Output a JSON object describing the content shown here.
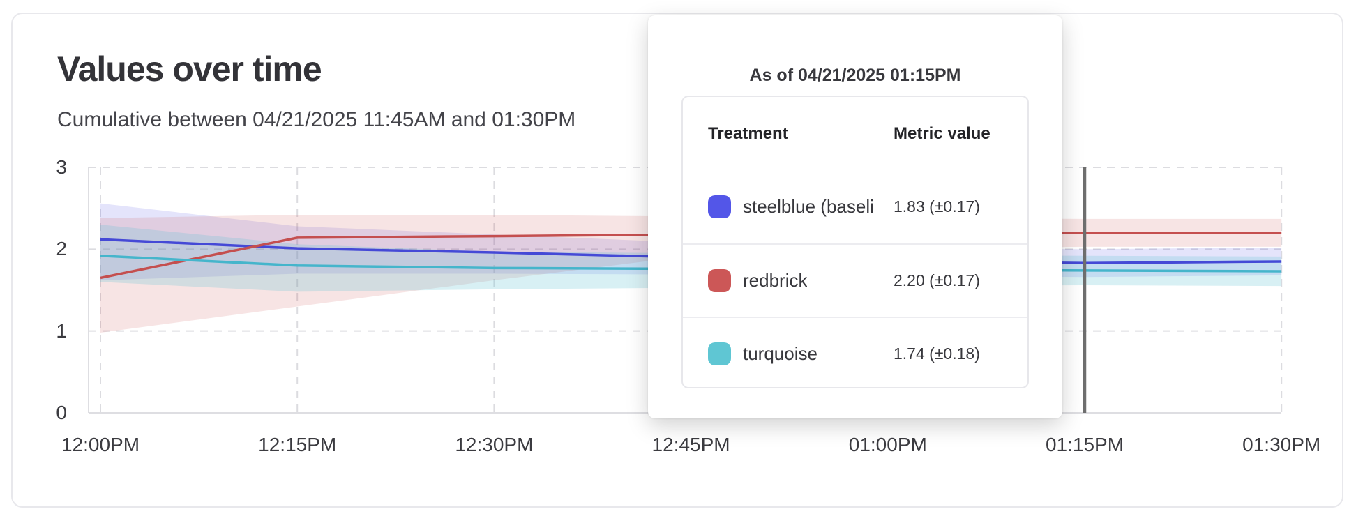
{
  "chart_data": {
    "type": "line",
    "title": "Values over time",
    "subtitle": "Cumulative between 04/21/2025 11:45AM and 01:30PM",
    "x_tick_labels": [
      "12:00PM",
      "12:15PM",
      "12:30PM",
      "12:45PM",
      "01:00PM",
      "01:15PM",
      "01:30PM"
    ],
    "y_ticks": [
      0,
      1,
      2,
      3
    ],
    "ylim": [
      0,
      3
    ],
    "grid": "dashed",
    "legend_position": "none",
    "marker": {
      "index": 5,
      "color": "#6e6e6e",
      "label": "01:15PM"
    },
    "series": [
      {
        "name": "steelblue (baseline)",
        "color": "#4549d6",
        "band_color": "rgba(84,87,232,0.16)",
        "values": [
          2.12,
          2.01,
          1.96,
          1.9,
          1.86,
          1.83,
          1.85
        ],
        "upper": [
          2.56,
          2.28,
          2.18,
          2.08,
          2.03,
          2.0,
          2.02
        ],
        "lower": [
          1.62,
          1.7,
          1.7,
          1.69,
          1.68,
          1.66,
          1.68
        ]
      },
      {
        "name": "redbrick",
        "color": "#c44f4f",
        "band_color": "rgba(205,90,90,0.16)",
        "values": [
          1.65,
          2.14,
          2.16,
          2.18,
          2.19,
          2.2,
          2.2
        ],
        "upper": [
          2.38,
          2.42,
          2.42,
          2.4,
          2.38,
          2.37,
          2.37
        ],
        "lower": [
          0.98,
          1.3,
          1.62,
          1.92,
          2.01,
          2.03,
          2.03
        ]
      },
      {
        "name": "turquoise",
        "color": "#45b5cb",
        "band_color": "rgba(98,197,212,0.25)",
        "values": [
          1.92,
          1.8,
          1.77,
          1.76,
          1.75,
          1.74,
          1.73
        ],
        "upper": [
          2.3,
          2.06,
          1.97,
          1.95,
          1.93,
          1.92,
          1.91
        ],
        "lower": [
          1.6,
          1.48,
          1.51,
          1.53,
          1.55,
          1.56,
          1.55
        ]
      }
    ]
  },
  "tooltip": {
    "title": "As of 04/21/2025 01:15PM",
    "columns": [
      "Treatment",
      "Metric value"
    ],
    "rows": [
      {
        "swatch_color": "#5356e8",
        "label": "steelblue  (baseli",
        "value": "1.83 (±0.17)"
      },
      {
        "swatch_color": "#cc5757",
        "label": "redbrick",
        "value": "2.20 (±0.17)"
      },
      {
        "swatch_color": "#5fc6d3",
        "label": "turquoise",
        "value": "1.74 (±0.18)"
      }
    ]
  }
}
